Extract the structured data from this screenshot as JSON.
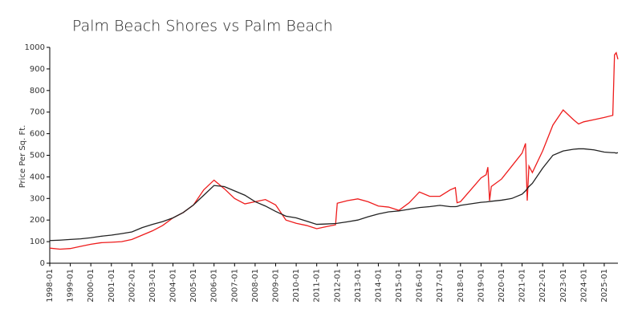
{
  "chart_data": {
    "type": "line",
    "title": "Palm Beach Shores vs Palm Beach",
    "y_label": "Price Per Sq. Ft.",
    "x": [
      "1998-01",
      "1998-07",
      "1999-01",
      "1999-07",
      "2000-01",
      "2000-07",
      "2001-01",
      "2001-07",
      "2002-01",
      "2002-07",
      "2003-01",
      "2003-07",
      "2004-01",
      "2004-07",
      "2005-01",
      "2005-07",
      "2006-01",
      "2006-07",
      "2007-01",
      "2007-07",
      "2008-01",
      "2008-07",
      "2009-01",
      "2009-07",
      "2010-01",
      "2010-07",
      "2011-01",
      "2011-07",
      "2011-12",
      "2012-01",
      "2012-07",
      "2013-01",
      "2013-07",
      "2014-01",
      "2014-07",
      "2015-01",
      "2015-07",
      "2016-01",
      "2016-07",
      "2017-01",
      "2017-07",
      "2017-10",
      "2017-11",
      "2018-01",
      "2018-07",
      "2019-01",
      "2019-04",
      "2019-05",
      "2019-06",
      "2019-07",
      "2020-01",
      "2020-07",
      "2021-01",
      "2021-03",
      "2021-04",
      "2021-05",
      "2021-07",
      "2022-01",
      "2022-07",
      "2023-01",
      "2023-07",
      "2023-10",
      "2024-01",
      "2024-07",
      "2025-01",
      "2025-06",
      "2025-07",
      "2025-08",
      "2025-09"
    ],
    "series": [
      {
        "color": "#ee1c1c",
        "values": [
          70,
          65,
          68,
          78,
          88,
          95,
          97,
          100,
          110,
          130,
          150,
          175,
          210,
          235,
          270,
          340,
          385,
          345,
          300,
          275,
          285,
          295,
          270,
          200,
          185,
          175,
          160,
          170,
          178,
          278,
          290,
          298,
          285,
          265,
          260,
          245,
          280,
          330,
          310,
          310,
          340,
          350,
          280,
          285,
          340,
          395,
          410,
          445,
          290,
          355,
          390,
          450,
          510,
          555,
          290,
          450,
          420,
          520,
          640,
          710,
          665,
          645,
          655,
          665,
          675,
          685,
          965,
          975,
          945
        ]
      },
      {
        "color": "#222222",
        "values": [
          105,
          107,
          110,
          113,
          118,
          125,
          130,
          137,
          145,
          165,
          180,
          193,
          210,
          235,
          270,
          315,
          360,
          355,
          335,
          315,
          285,
          265,
          240,
          218,
          210,
          195,
          180,
          182,
          184,
          185,
          192,
          200,
          215,
          228,
          238,
          242,
          250,
          258,
          262,
          268,
          262,
          262,
          263,
          268,
          275,
          282,
          284,
          285,
          286,
          287,
          292,
          300,
          320,
          335,
          345,
          355,
          370,
          440,
          500,
          520,
          528,
          530,
          530,
          525,
          515,
          512,
          512,
          510,
          512
        ]
      }
    ],
    "xlim": [
      "1998-01",
      "2025-09"
    ],
    "xticks": [
      "1998-01",
      "1999-01",
      "2000-01",
      "2001-01",
      "2002-01",
      "2003-01",
      "2004-01",
      "2005-01",
      "2006-01",
      "2007-01",
      "2008-01",
      "2009-01",
      "2010-01",
      "2011-01",
      "2012-01",
      "2013-01",
      "2014-01",
      "2015-01",
      "2016-01",
      "2017-01",
      "2018-01",
      "2019-01",
      "2020-01",
      "2021-01",
      "2022-01",
      "2023-01",
      "2024-01",
      "2025-01"
    ],
    "ylim": [
      0,
      1000
    ],
    "yticks": [
      0,
      100,
      200,
      300,
      400,
      500,
      600,
      700,
      800,
      900,
      1000
    ],
    "grid": false
  }
}
